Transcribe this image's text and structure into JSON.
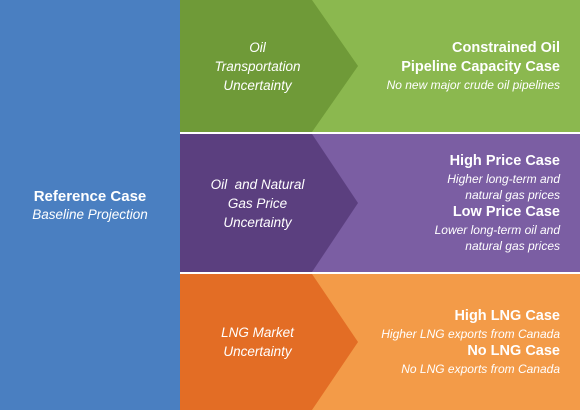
{
  "reference": {
    "title": "Reference Case",
    "subtitle": "Baseline Projection",
    "color": "#4a7fc1"
  },
  "bands": [
    {
      "uncertainty_lines": [
        "Oil",
        "Transportation",
        "Uncertainty"
      ],
      "arrow_color": "#6f9a38",
      "bg_color": "#8bb84f",
      "cases": [
        {
          "title_lines": [
            "Constrained Oil",
            "Pipeline Capacity Case"
          ],
          "desc_lines": [
            "No new major crude oil pipelines"
          ]
        }
      ]
    },
    {
      "uncertainty_lines": [
        "Oil  and Natural",
        "Gas Price",
        "Uncertainty"
      ],
      "arrow_color": "#5b3f7f",
      "bg_color": "#7b5ea3",
      "cases": [
        {
          "title_lines": [
            "High Price Case"
          ],
          "desc_lines": [
            "Higher long-term and",
            "natural gas prices"
          ]
        },
        {
          "title_lines": [
            "Low Price Case"
          ],
          "desc_lines": [
            "Lower long-term oil and",
            "natural gas prices"
          ]
        }
      ]
    },
    {
      "uncertainty_lines": [
        "LNG Market",
        "Uncertainty"
      ],
      "arrow_color": "#e36d25",
      "bg_color": "#f39b48",
      "cases": [
        {
          "title_lines": [
            "High LNG Case"
          ],
          "desc_lines": [
            "Higher LNG exports from Canada"
          ]
        },
        {
          "title_lines": [
            "No LNG Case"
          ],
          "desc_lines": [
            "No LNG exports from Canada"
          ]
        }
      ]
    }
  ]
}
